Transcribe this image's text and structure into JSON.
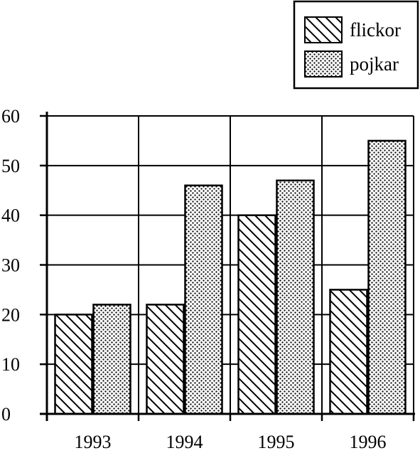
{
  "chart_data": {
    "type": "bar",
    "categories": [
      "1993",
      "1994",
      "1995",
      "1996"
    ],
    "series": [
      {
        "name": "flickor",
        "pattern": "diagonal-hatch",
        "values": [
          20,
          22,
          40,
          25
        ]
      },
      {
        "name": "pojkar",
        "pattern": "dots",
        "values": [
          22,
          46,
          47,
          55
        ]
      }
    ],
    "ylim": [
      0,
      60
    ],
    "yticks": [
      "0",
      "10",
      "20",
      "30",
      "40",
      "50",
      "60"
    ],
    "grid": true,
    "legend_position": "top-right",
    "colors": {
      "ink": "#000000",
      "background": "#ffffff"
    }
  }
}
